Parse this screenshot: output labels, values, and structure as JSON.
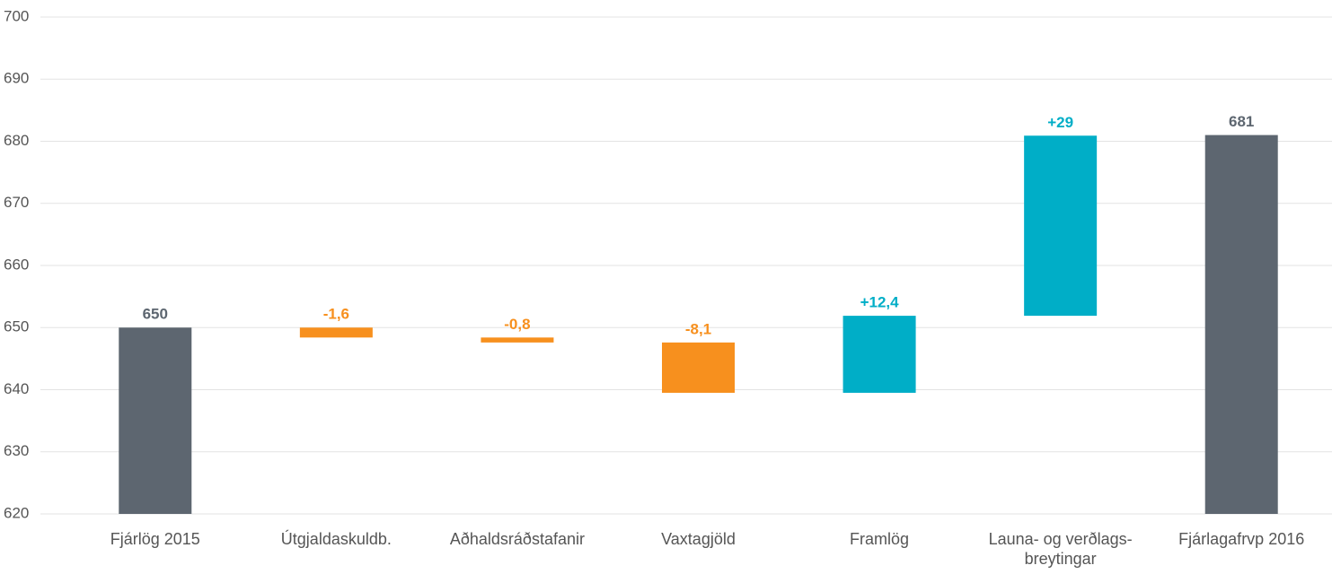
{
  "chart_data": {
    "type": "waterfall",
    "categories": [
      "Fjárlög 2015",
      "Útgjaldaskuldb.",
      "Aðhaldsráðstafanir",
      "Vaxtagjöld",
      "Framlög",
      "Launa- og verðlags- breytingar",
      "Fjárlagafrvp 2016"
    ],
    "values": [
      650,
      -1.6,
      -0.8,
      -8.1,
      12.4,
      29,
      681
    ],
    "value_labels": [
      "650",
      "-1,6",
      "-0,8",
      "-8,1",
      "+12,4",
      "+29",
      "681"
    ],
    "measure": [
      "absolute",
      "relative",
      "relative",
      "relative",
      "relative",
      "relative",
      "total"
    ],
    "colors": {
      "total": "#5d6670",
      "decrease": "#f7901e",
      "increase": "#00aec7"
    },
    "ylim": [
      620,
      700
    ],
    "yticks": [
      620,
      630,
      640,
      650,
      660,
      670,
      680,
      690,
      700
    ],
    "grid": true
  }
}
